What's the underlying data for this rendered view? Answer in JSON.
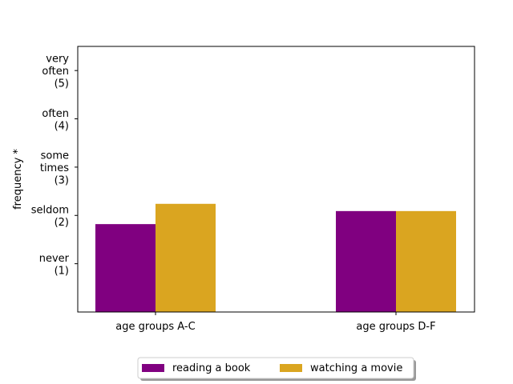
{
  "chart_data": {
    "type": "bar",
    "categories": [
      "age groups A-C",
      "age groups D-F"
    ],
    "series": [
      {
        "name": "reading a book",
        "values": [
          1.82,
          2.09
        ],
        "color": "#800080"
      },
      {
        "name": "watching a movie",
        "values": [
          2.24,
          2.09
        ],
        "color": "#daa520"
      }
    ],
    "ylabel": "frequency *",
    "ylim": [
      0,
      5.5
    ],
    "yticks": [
      {
        "value": 1,
        "lines": [
          "never",
          "(1)"
        ]
      },
      {
        "value": 2,
        "lines": [
          "seldom",
          "(2)"
        ]
      },
      {
        "value": 3,
        "lines": [
          "some",
          "times",
          "(3)"
        ]
      },
      {
        "value": 4,
        "lines": [
          "often",
          "(4)"
        ]
      },
      {
        "value": 5,
        "lines": [
          "very",
          "often",
          "(5)"
        ]
      }
    ],
    "grid": false,
    "legend": {
      "position": "bottom-center",
      "columns": 2
    }
  }
}
